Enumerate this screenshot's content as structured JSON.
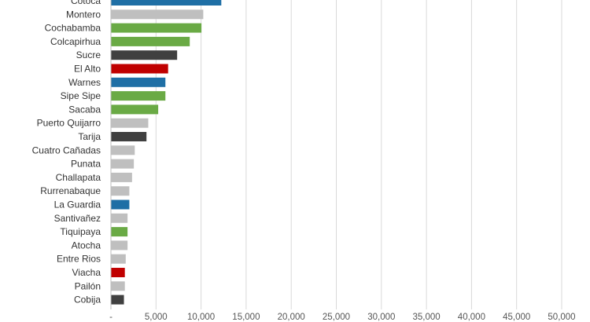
{
  "chart_data": {
    "type": "bar",
    "orientation": "horizontal",
    "categories": [
      "Cotoca",
      "Montero",
      "Cochabamba",
      "Colcapirhua",
      "Sucre",
      "El Alto",
      "Warnes",
      "Sipe Sipe",
      "Sacaba",
      "Puerto Quijarro",
      "Tarija",
      "Cuatro Cañadas",
      "Punata",
      "Challapata",
      "Rurrenabaque",
      "La Guardia",
      "Santivañez",
      "Tiquipaya",
      "Atocha",
      "Entre Rios",
      "Viacha",
      "Pailón",
      "Cobija"
    ],
    "values": [
      12200,
      10200,
      10000,
      8700,
      7300,
      6300,
      6000,
      6000,
      5200,
      4100,
      3900,
      2600,
      2500,
      2300,
      2000,
      2000,
      1800,
      1800,
      1800,
      1600,
      1500,
      1500,
      1400
    ],
    "colors": [
      "#1f6fa5",
      "#bfbfbf",
      "#6aaa45",
      "#6aaa45",
      "#404040",
      "#c00000",
      "#1f6fa5",
      "#6aaa45",
      "#6aaa45",
      "#bfbfbf",
      "#404040",
      "#bfbfbf",
      "#bfbfbf",
      "#bfbfbf",
      "#bfbfbf",
      "#1f6fa5",
      "#bfbfbf",
      "#6aaa45",
      "#bfbfbf",
      "#bfbfbf",
      "#c00000",
      "#bfbfbf",
      "#404040"
    ],
    "xlim": [
      0,
      50000
    ],
    "xticks": [
      "-",
      "5,000",
      "10,000",
      "15,000",
      "20,000",
      "25,000",
      "30,000",
      "35,000",
      "40,000",
      "45,000",
      "50,000"
    ],
    "grid": true,
    "legend": "none"
  }
}
